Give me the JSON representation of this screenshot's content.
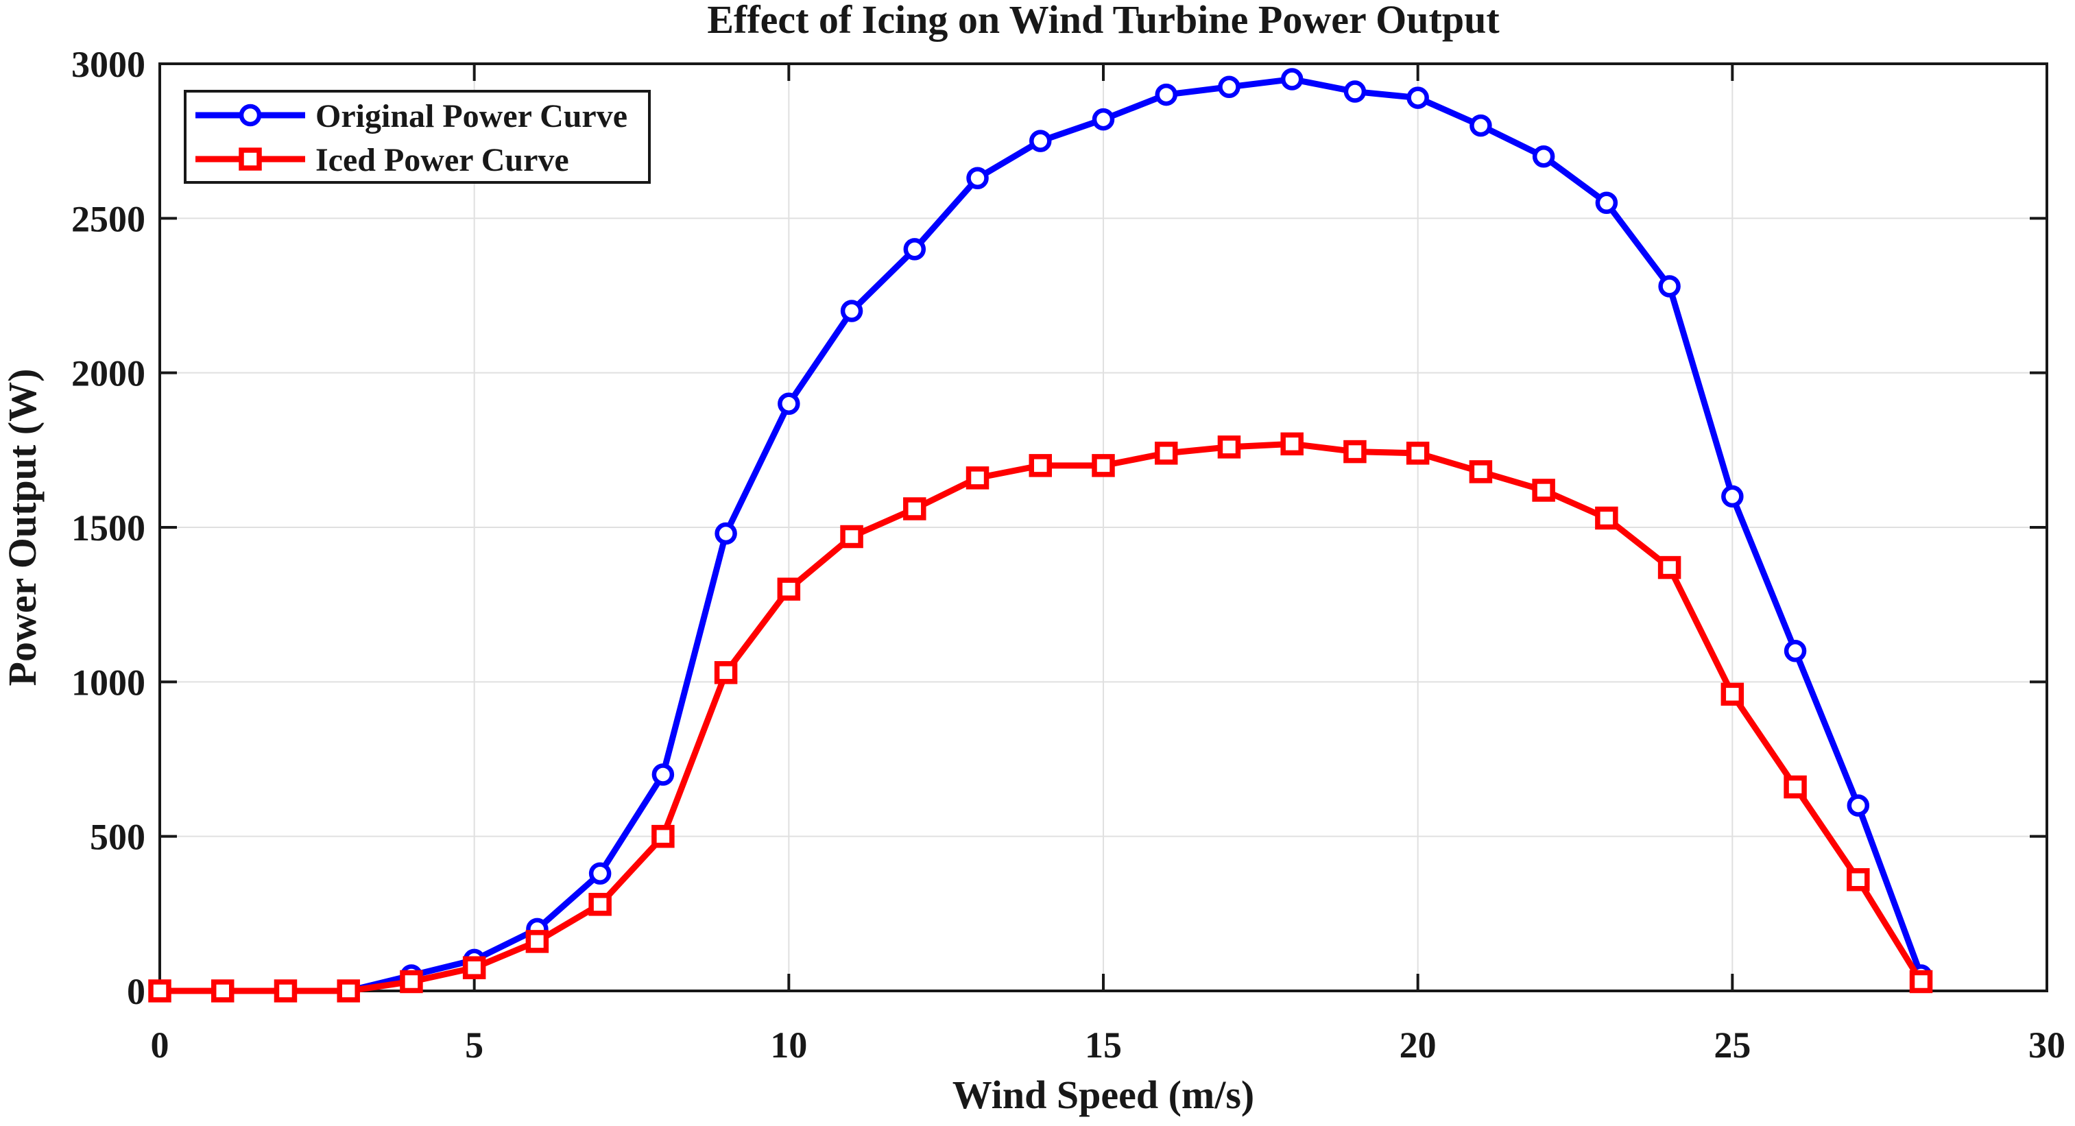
{
  "chart_data": {
    "type": "line",
    "title": "Effect of Icing on Wind Turbine Power Output",
    "xlabel": "Wind Speed (m/s)",
    "ylabel": "Power Output (W)",
    "xlim": [
      0,
      30
    ],
    "ylim": [
      0,
      3000
    ],
    "x_ticks": [
      0,
      5,
      10,
      15,
      20,
      25,
      30
    ],
    "y_ticks": [
      0,
      500,
      1000,
      1500,
      2000,
      2500,
      3000
    ],
    "grid": true,
    "legend_position": "top-left",
    "x": [
      0,
      1,
      2,
      3,
      4,
      5,
      6,
      7,
      8,
      9,
      10,
      11,
      12,
      13,
      14,
      15,
      16,
      17,
      18,
      19,
      20,
      21,
      22,
      23,
      24,
      25,
      26,
      27,
      28
    ],
    "series": [
      {
        "name": "Original Power Curve",
        "color": "#0000FF",
        "marker": "circle",
        "values": [
          0,
          0,
          0,
          0,
          50,
          100,
          200,
          380,
          700,
          1480,
          1900,
          2200,
          2400,
          2630,
          2750,
          2820,
          2900,
          2925,
          2950,
          2910,
          2890,
          2800,
          2700,
          2550,
          2280,
          1600,
          1100,
          600,
          50
        ]
      },
      {
        "name": "Iced Power Curve",
        "color": "#FF0000",
        "marker": "square",
        "values": [
          0,
          0,
          0,
          0,
          30,
          75,
          160,
          280,
          500,
          1030,
          1300,
          1470,
          1560,
          1660,
          1700,
          1700,
          1740,
          1760,
          1770,
          1745,
          1740,
          1680,
          1620,
          1530,
          1370,
          960,
          660,
          360,
          30
        ]
      }
    ]
  },
  "colors": {
    "axis": "#181818",
    "grid": "#E0E0E0",
    "background": "#FFFFFF",
    "legend_border": "#181818"
  }
}
